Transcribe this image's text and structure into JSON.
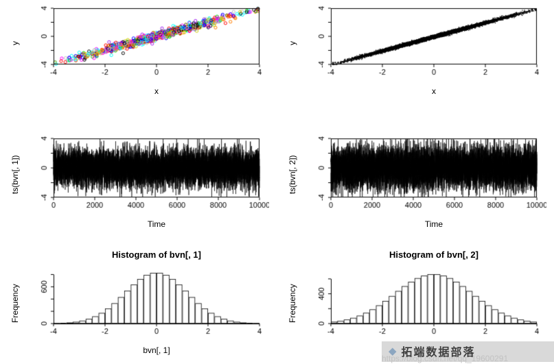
{
  "watermark": {
    "brand": "拓端数据部落",
    "url": "https://blog.csdn.net/qq_19600291",
    "bar_color": "#d9d9d9",
    "logo_color": "#8ca6c0"
  },
  "chart_data": [
    {
      "type": "scatter",
      "variant": "colored-circles",
      "xlabel": "x",
      "ylabel": "y",
      "n": 1000,
      "sd": 1.5,
      "correlation": 0.98,
      "seed": 7,
      "xlim": [
        -4,
        4
      ],
      "ylim": [
        -4,
        4
      ],
      "xticks": [
        -4,
        -2,
        0,
        2,
        4
      ],
      "xtick_labels": [
        "-4",
        "-2",
        "0",
        "2",
        "4"
      ],
      "yticks": [
        -4,
        -2,
        0,
        2,
        4
      ],
      "ytick_labels": [
        "-4",
        "",
        "0",
        "",
        "4"
      ],
      "palette": [
        "#000000",
        "#FF0000",
        "#00CD00",
        "#0000FF",
        "#00FFFF",
        "#FF00FF",
        "#CCCC00",
        "#BEBEBE",
        "#FF7F00",
        "#A020F0"
      ]
    },
    {
      "type": "scatter",
      "variant": "black-points",
      "xlabel": "x",
      "ylabel": "y",
      "n": 10000,
      "sd": 1.5,
      "correlation": 0.997,
      "seed": 11,
      "xlim": [
        -4,
        4
      ],
      "ylim": [
        -4,
        4
      ],
      "xticks": [
        -4,
        -2,
        0,
        2,
        4
      ],
      "xtick_labels": [
        "-4",
        "-2",
        "0",
        "2",
        "4"
      ],
      "yticks": [
        -4,
        -2,
        0,
        2,
        4
      ],
      "ytick_labels": [
        "-4",
        "",
        "0",
        "",
        "4"
      ],
      "color": "#000000"
    },
    {
      "type": "line",
      "variant": "time-series-noise",
      "xlabel": "Time",
      "ylabel": "ts(bvn[, 1])",
      "n": 10000,
      "sd": 1.25,
      "seed": 13,
      "xlim": [
        0,
        10000
      ],
      "ylim": [
        -4,
        4
      ],
      "xticks": [
        0,
        2000,
        4000,
        6000,
        8000,
        10000
      ],
      "xtick_labels": [
        "0",
        "2000",
        "4000",
        "6000",
        "8000",
        "10000"
      ],
      "yticks": [
        -4,
        -2,
        0,
        2,
        4
      ],
      "ytick_labels": [
        "-4",
        "",
        "0",
        "",
        "4"
      ],
      "color": "#000000"
    },
    {
      "type": "line",
      "variant": "time-series-noise",
      "xlabel": "Time",
      "ylabel": "ts(bvn[, 2])",
      "n": 10000,
      "sd": 1.45,
      "seed": 17,
      "xlim": [
        0,
        10000
      ],
      "ylim": [
        -4,
        4
      ],
      "xticks": [
        0,
        2000,
        4000,
        6000,
        8000,
        10000
      ],
      "xtick_labels": [
        "0",
        "2000",
        "4000",
        "6000",
        "8000",
        "10000"
      ],
      "yticks": [
        -4,
        -2,
        0,
        2,
        4
      ],
      "ytick_labels": [
        "-4",
        "",
        "0",
        "",
        "4"
      ],
      "color": "#000000"
    },
    {
      "type": "histogram",
      "title": "Histogram of bvn[, 1]",
      "xlabel": "bvn[, 1]",
      "ylabel": "Frequency",
      "bin_start": -4,
      "bin_width": 0.25,
      "values": [
        4,
        9,
        16,
        28,
        47,
        76,
        117,
        173,
        245,
        331,
        431,
        536,
        637,
        726,
        792,
        826,
        826,
        792,
        726,
        637,
        536,
        431,
        331,
        245,
        173,
        117,
        76,
        47,
        28,
        16,
        9,
        4
      ],
      "xlim": [
        -4,
        4
      ],
      "ylim": [
        0,
        850
      ],
      "xticks": [
        -4,
        -2,
        0,
        2,
        4
      ],
      "xtick_labels": [
        "-4",
        "-2",
        "0",
        "2",
        "4"
      ],
      "yticks": [
        0,
        200,
        400,
        600,
        800
      ],
      "ytick_labels": [
        "0",
        "",
        "",
        "600",
        ""
      ]
    },
    {
      "type": "histogram",
      "title": "Histogram of bvn[, 2]",
      "xlabel": "bvn[, 2]",
      "ylabel": "Frequency",
      "bin_start": -4,
      "bin_width": 0.25,
      "values": [
        24,
        36,
        53,
        76,
        106,
        144,
        190,
        244,
        304,
        370,
        437,
        502,
        561,
        610,
        644,
        663,
        663,
        644,
        610,
        561,
        502,
        437,
        370,
        304,
        244,
        190,
        144,
        106,
        76,
        53,
        36,
        24
      ],
      "xlim": [
        -4,
        4
      ],
      "ylim": [
        0,
        700
      ],
      "xticks": [
        -4,
        -2,
        0,
        2,
        4
      ],
      "xtick_labels": [
        "-4",
        "-2",
        "0",
        "2",
        "4"
      ],
      "yticks": [
        0,
        200,
        400,
        600
      ],
      "ytick_labels": [
        "0",
        "",
        "400",
        ""
      ]
    }
  ]
}
